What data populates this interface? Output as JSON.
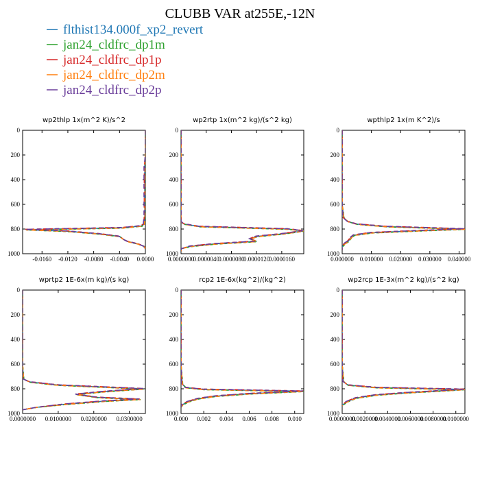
{
  "title": "CLUBB VAR at255E,-12N",
  "legend": [
    {
      "name": "flthist134.000f_xp2_revert",
      "color": "#1f77b4"
    },
    {
      "name": "jan24_cldfrc_dp1m",
      "color": "#2ca02c"
    },
    {
      "name": "jan24_cldfrc_dp1p",
      "color": "#d62728"
    },
    {
      "name": "jan24_cldfrc_dp2m",
      "color": "#ff7f0e"
    },
    {
      "name": "jan24_cldfrc_dp2p",
      "color": "#6a3d9a"
    }
  ],
  "chart_data": [
    {
      "type": "line",
      "title": "wp2thlp   1x(m^2 K)/s^2",
      "xlim": [
        -0.019,
        0.0
      ],
      "ylim": [
        1000,
        0
      ],
      "xticks": [
        "-0.0160",
        "-0.0120",
        "-0.0080",
        "-0.0040",
        "0.0000"
      ],
      "xtick_values": [
        -0.016,
        -0.012,
        -0.008,
        -0.004,
        0.0
      ],
      "yticks": [
        0,
        200,
        400,
        600,
        800,
        1000
      ],
      "profile": [
        [
          0,
          0
        ],
        [
          0,
          100
        ],
        [
          0,
          200
        ],
        [
          -0.0001,
          300
        ],
        [
          -0.0001,
          400
        ],
        [
          -0.0001,
          500
        ],
        [
          -0.0001,
          600
        ],
        [
          -0.0001,
          700
        ],
        [
          -0.0002,
          760
        ],
        [
          -0.0006,
          775
        ],
        [
          -0.0035,
          790
        ],
        [
          -0.0185,
          805
        ],
        [
          -0.012,
          818
        ],
        [
          -0.007,
          840
        ],
        [
          -0.004,
          860
        ],
        [
          -0.0035,
          880
        ],
        [
          -0.0028,
          900
        ],
        [
          -0.0012,
          920
        ],
        [
          -0.0002,
          940
        ],
        [
          0,
          960
        ]
      ]
    },
    {
      "type": "line",
      "title": "wp2rtp   1x(m^2 kg)/(s^2 kg)",
      "xlim": [
        0.0,
        1.95e-05
      ],
      "ylim": [
        1000,
        0
      ],
      "xticks": [
        "0.0000000",
        "0.0000040",
        "0.0000080",
        "0.0000120",
        "0.0000160"
      ],
      "xtick_values": [
        0.0,
        4e-06,
        8e-06,
        1.2e-05,
        1.6e-05
      ],
      "yticks": [
        0,
        200,
        400,
        600,
        800,
        1000
      ],
      "profile": [
        [
          0,
          0
        ],
        [
          0,
          300
        ],
        [
          0,
          600
        ],
        [
          0,
          740
        ],
        [
          5e-07,
          760
        ],
        [
          3e-06,
          780
        ],
        [
          1.7e-05,
          800
        ],
        [
          1.95e-05,
          815
        ],
        [
          1.6e-05,
          840
        ],
        [
          1.2e-05,
          860
        ],
        [
          1.1e-05,
          880
        ],
        [
          1.2e-05,
          900
        ],
        [
          5.5e-06,
          920
        ],
        [
          1.5e-06,
          940
        ],
        [
          0,
          960
        ],
        [
          0,
          980
        ]
      ]
    },
    {
      "type": "line",
      "title": "wpthlp2   1x(m K^2)/s",
      "xlim": [
        0.0,
        0.042
      ],
      "ylim": [
        1000,
        0
      ],
      "xticks": [
        "0.000000",
        "0.010000",
        "0.020000",
        "0.030000",
        "0.040000"
      ],
      "xtick_values": [
        0.0,
        0.01,
        0.02,
        0.03,
        0.04
      ],
      "yticks": [
        0,
        200,
        400,
        600,
        800,
        1000
      ],
      "profile": [
        [
          0,
          0
        ],
        [
          0,
          300
        ],
        [
          0,
          600
        ],
        [
          0.0005,
          710
        ],
        [
          0.002,
          740
        ],
        [
          0.005,
          760
        ],
        [
          0.015,
          780
        ],
        [
          0.042,
          800
        ],
        [
          0.025,
          815
        ],
        [
          0.01,
          830
        ],
        [
          0.004,
          850
        ],
        [
          0.003,
          870
        ],
        [
          0.002,
          900
        ],
        [
          0.0008,
          920
        ],
        [
          0,
          945
        ],
        [
          0,
          970
        ]
      ]
    },
    {
      "type": "line",
      "title": "wprtp2   1E-6x(m kg)/(s kg)",
      "xlim": [
        0.0,
        0.0345
      ],
      "ylim": [
        1000,
        0
      ],
      "xticks": [
        "0.0000000",
        "0.0100000",
        "0.0200000",
        "0.0300000"
      ],
      "xtick_values": [
        0.0,
        0.01,
        0.02,
        0.03
      ],
      "yticks": [
        0,
        200,
        400,
        600,
        800,
        1000
      ],
      "profile": [
        [
          0,
          0
        ],
        [
          0,
          300
        ],
        [
          0,
          600
        ],
        [
          0.0002,
          720
        ],
        [
          0.002,
          745
        ],
        [
          0.01,
          770
        ],
        [
          0.034,
          800
        ],
        [
          0.022,
          825
        ],
        [
          0.015,
          845
        ],
        [
          0.021,
          870
        ],
        [
          0.033,
          885
        ],
        [
          0.023,
          900
        ],
        [
          0.012,
          925
        ],
        [
          0.004,
          950
        ],
        [
          0,
          970
        ]
      ]
    },
    {
      "type": "line",
      "title": "rcp2   1E-6x(kg^2)/(kg^2)",
      "xlim": [
        0.0,
        0.0108
      ],
      "ylim": [
        1000,
        0
      ],
      "xticks": [
        "0.000",
        "0.002",
        "0.004",
        "0.006",
        "0.008",
        "0.010"
      ],
      "xtick_values": [
        0.0,
        0.002,
        0.004,
        0.006,
        0.008,
        0.01
      ],
      "yticks": [
        0,
        200,
        400,
        600,
        800,
        1000
      ],
      "profile": [
        [
          0,
          0
        ],
        [
          0,
          300
        ],
        [
          0,
          600
        ],
        [
          0.0001,
          760
        ],
        [
          0.0004,
          790
        ],
        [
          0.002,
          805
        ],
        [
          0.0108,
          820
        ],
        [
          0.006,
          840
        ],
        [
          0.003,
          860
        ],
        [
          0.0015,
          880
        ],
        [
          0.0006,
          905
        ],
        [
          0.0001,
          930
        ],
        [
          0,
          950
        ]
      ]
    },
    {
      "type": "line",
      "title": "wp2rcp   1E-3x(m^2 kg)/(s^2 kg)",
      "xlim": [
        0.0,
        0.0108
      ],
      "ylim": [
        1000,
        0
      ],
      "xticks": [
        "0.0000000",
        "0.0020000",
        "0.0040000",
        "0.0060000",
        "0.0080000",
        "0.0100000"
      ],
      "xtick_values": [
        0.0,
        0.002,
        0.004,
        0.006,
        0.008,
        0.01
      ],
      "yticks": [
        0,
        200,
        400,
        600,
        800,
        1000
      ],
      "profile": [
        [
          0,
          0
        ],
        [
          0,
          300
        ],
        [
          0,
          600
        ],
        [
          0.0001,
          740
        ],
        [
          0.0005,
          770
        ],
        [
          0.003,
          790
        ],
        [
          0.0108,
          805
        ],
        [
          0.009,
          815
        ],
        [
          0.006,
          830
        ],
        [
          0.003,
          850
        ],
        [
          0.0012,
          875
        ],
        [
          0.0004,
          905
        ],
        [
          0,
          935
        ]
      ]
    }
  ]
}
